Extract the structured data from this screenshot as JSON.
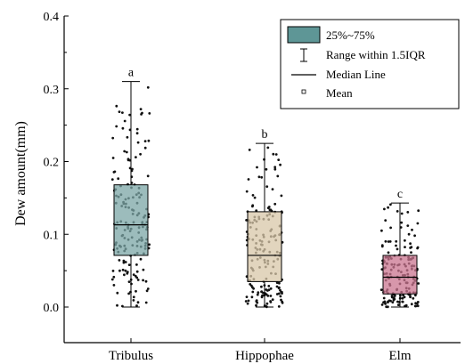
{
  "chart_data": {
    "type": "box",
    "ylabel": "Dew amount(mm)",
    "xlabel": "",
    "ylim": [
      0,
      0.4
    ],
    "yticks": [
      "0.0",
      "0.1",
      "0.2",
      "0.3",
      "0.4"
    ],
    "categories": [
      "Tribulus",
      "Hippophae",
      "Elm"
    ],
    "boxes": [
      {
        "name": "Tribulus",
        "whisker_low": 0.0,
        "q1": 0.071,
        "median": 0.113,
        "q3": 0.168,
        "whisker_high": 0.31,
        "letter": "a",
        "color": "#7ba6a6"
      },
      {
        "name": "Hippophae",
        "whisker_low": 0.0,
        "q1": 0.035,
        "median": 0.071,
        "q3": 0.131,
        "whisker_high": 0.225,
        "letter": "b",
        "color": "#d8c7a8"
      },
      {
        "name": "Elm",
        "whisker_low": 0.0,
        "q1": 0.018,
        "median": 0.041,
        "q3": 0.071,
        "whisker_high": 0.143,
        "letter": "c",
        "color": "#c9748f"
      }
    ],
    "legend": {
      "position": "top-right",
      "entries": [
        "25%~75%",
        "Range within 1.5IQR",
        "Median Line",
        "Mean"
      ]
    }
  }
}
